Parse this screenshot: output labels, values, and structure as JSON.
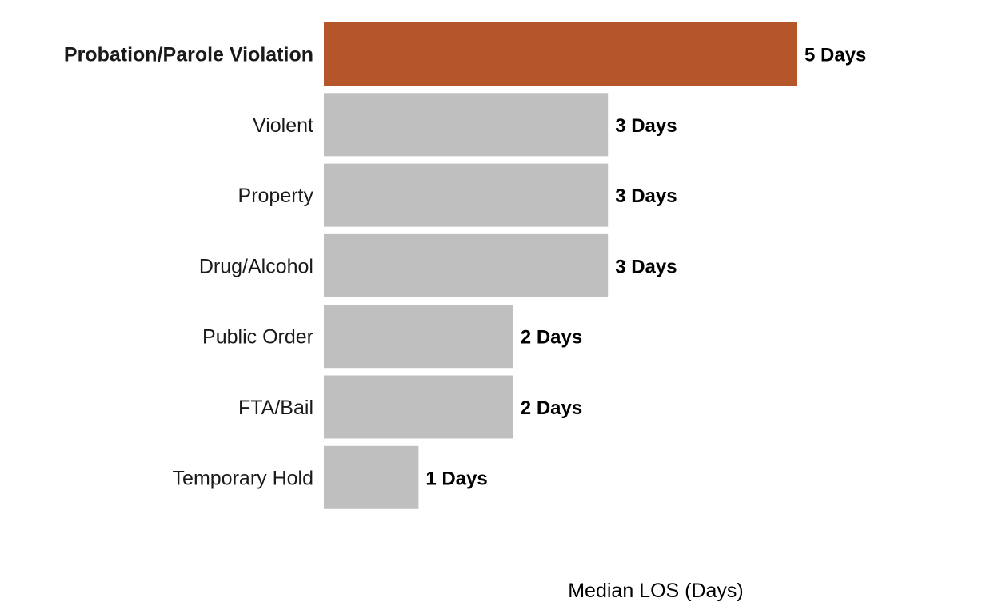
{
  "chart_data": {
    "type": "bar",
    "orientation": "horizontal",
    "categories": [
      "Probation/Parole Violation",
      "Violent",
      "Property",
      "Drug/Alcohol",
      "Public Order",
      "FTA/Bail",
      "Temporary Hold"
    ],
    "values": [
      5,
      3,
      3,
      3,
      2,
      2,
      1
    ],
    "value_labels": [
      "5 Days",
      "3 Days",
      "3 Days",
      "3 Days",
      "2 Days",
      "2 Days",
      "1 Days"
    ],
    "highlight_index": 0,
    "xlabel": "Median LOS (Days)",
    "ylabel": "",
    "title": "",
    "xlim": [
      0,
      5
    ],
    "grid": false,
    "legend": "none",
    "colors": {
      "highlight": "#B5562A",
      "default_bar": "#BFBFBF",
      "default_label": "#1A1A1A",
      "value_label": "#000000"
    }
  }
}
